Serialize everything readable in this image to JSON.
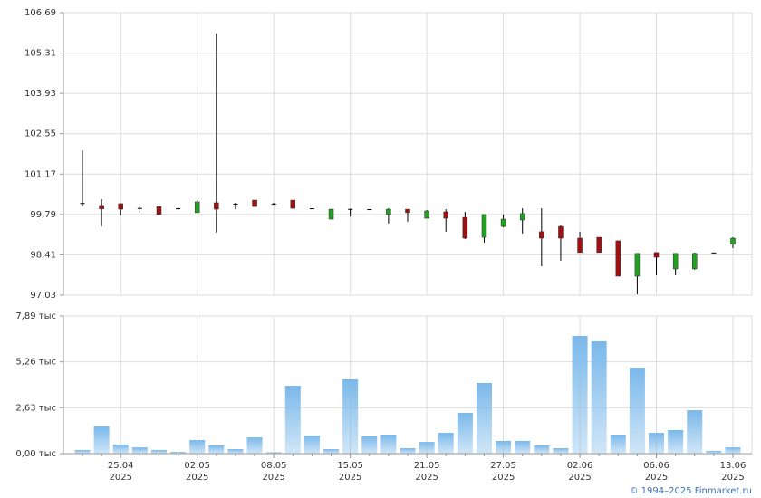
{
  "chart_data": [
    {
      "type": "candlestick",
      "open": [
        100.18,
        100.1,
        100.16,
        100.01,
        100.06,
        100.0,
        99.85,
        100.19,
        100.15,
        100.28,
        100.16,
        100.28,
        100.0,
        99.63,
        99.98,
        99.97,
        99.79,
        99.97,
        99.66,
        99.88,
        99.69,
        99.01,
        99.38,
        99.6,
        99.2,
        99.38,
        98.98,
        99.01,
        98.89,
        97.68,
        98.49,
        97.93,
        97.93,
        98.49,
        98.77
      ],
      "high": [
        101.98,
        100.31,
        100.16,
        100.1,
        100.1,
        100.03,
        100.28,
        105.98,
        100.19,
        100.28,
        100.19,
        100.28,
        100.0,
        99.97,
        99.98,
        99.97,
        100.0,
        99.97,
        99.94,
        99.97,
        99.88,
        99.79,
        99.79,
        100.0,
        100.0,
        99.44,
        99.2,
        99.01,
        98.89,
        98.46,
        98.49,
        98.46,
        98.49,
        98.49,
        99.01
      ],
      "low": [
        100.06,
        99.38,
        99.76,
        99.85,
        99.79,
        99.94,
        99.85,
        99.17,
        99.97,
        100.06,
        100.12,
        100.0,
        99.98,
        99.63,
        99.72,
        99.95,
        99.48,
        99.54,
        99.66,
        99.2,
        98.95,
        98.83,
        99.35,
        99.14,
        98.02,
        98.21,
        98.49,
        98.49,
        97.68,
        97.06,
        97.71,
        97.71,
        97.9,
        98.48,
        98.64
      ],
      "close": [
        100.15,
        99.98,
        99.97,
        99.98,
        99.79,
        99.98,
        100.22,
        99.97,
        100.16,
        100.06,
        100.15,
        100.0,
        99.98,
        99.97,
        99.97,
        99.95,
        99.97,
        99.85,
        99.91,
        99.66,
        98.98,
        99.79,
        99.63,
        99.82,
        98.98,
        98.98,
        98.49,
        98.49,
        97.68,
        98.46,
        98.33,
        98.46,
        98.46,
        98.48,
        98.98
      ],
      "up_color": "#22a022",
      "down_color": "#a01010",
      "flat_color": "#000000",
      "ylim": [
        97.03,
        106.69
      ],
      "yticks": [
        {
          "value": 97.03,
          "label": "97,03"
        },
        {
          "value": 98.41,
          "label": "98,41"
        },
        {
          "value": 99.79,
          "label": "99,79"
        },
        {
          "value": 101.17,
          "label": "101,17"
        },
        {
          "value": 102.55,
          "label": "102,55"
        },
        {
          "value": 103.93,
          "label": "103,93"
        },
        {
          "value": 105.31,
          "label": "105,31"
        },
        {
          "value": 106.69,
          "label": "106,69"
        }
      ],
      "grid": true
    },
    {
      "type": "bar",
      "categories": [
        null,
        null,
        "25.04\n2025",
        null,
        null,
        null,
        "02.05\n2025",
        null,
        null,
        null,
        "08.05\n2025",
        null,
        null,
        null,
        "15.05\n2025",
        null,
        null,
        null,
        "21.05\n2025",
        null,
        null,
        null,
        "27.05\n2025",
        null,
        null,
        null,
        "02.06\n2025",
        null,
        null,
        null,
        "06.06\n2025",
        null,
        null,
        null,
        "13.06\n2025"
      ],
      "values": [
        0.21,
        1.56,
        0.52,
        0.36,
        0.21,
        0.1,
        0.78,
        0.47,
        0.26,
        0.93,
        0.08,
        3.89,
        1.04,
        0.26,
        4.26,
        0.99,
        1.09,
        0.31,
        0.67,
        1.19,
        2.34,
        4.05,
        0.73,
        0.73,
        0.47,
        0.31,
        6.75,
        6.44,
        1.09,
        4.93,
        1.19,
        1.35,
        2.49,
        0.16,
        0.36
      ],
      "color": "#7ab8ea",
      "ylim": [
        0,
        7.89
      ],
      "yticks": [
        {
          "value": 0,
          "label": "0,00 тыс"
        },
        {
          "value": 2.63,
          "label": "2,63 тыс"
        },
        {
          "value": 5.26,
          "label": "5,26 тыс"
        },
        {
          "value": 7.89,
          "label": "7,89 тыс"
        }
      ],
      "grid": true
    }
  ],
  "footer": "© 1994–2025 Finmarket.ru"
}
